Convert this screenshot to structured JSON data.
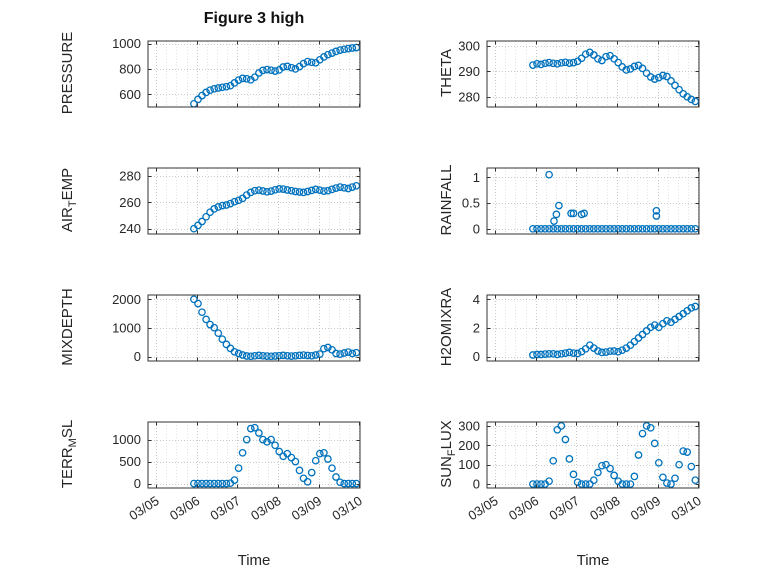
{
  "figure": {
    "title": "Figure 3 high",
    "xlabel": "Time"
  },
  "style": {
    "marker_color": "#0072BD",
    "axis_color": "#333333",
    "grid_color": "#c9c9c9",
    "minor_grid_color": "#e3e3e3",
    "background": "#ffffff"
  },
  "chart_data": [
    {
      "type": "scatter",
      "name": "pressure",
      "ylabel_parts": [
        {
          "text": "PRESSURE",
          "sub": false
        }
      ],
      "xlim": [
        4.8,
        10.02
      ],
      "ylim": [
        500,
        1020
      ],
      "xticks": [
        5,
        6,
        7,
        8,
        9,
        10
      ],
      "xtick_labels": [
        "03/05",
        "03/06",
        "03/07",
        "03/08",
        "03/09",
        "03/10"
      ],
      "ytick_vals": [
        600,
        800,
        1000
      ],
      "ytick_labels": [
        "600",
        "800",
        "1000"
      ],
      "x_minor_step": 0.25,
      "show_xtick_labels": false,
      "x": [
        5.93,
        6.03,
        6.13,
        6.23,
        6.33,
        6.43,
        6.53,
        6.63,
        6.73,
        6.83,
        6.93,
        7.03,
        7.13,
        7.23,
        7.33,
        7.43,
        7.53,
        7.63,
        7.73,
        7.83,
        7.93,
        8.03,
        8.13,
        8.23,
        8.33,
        8.43,
        8.53,
        8.63,
        8.73,
        8.83,
        8.93,
        9.03,
        9.13,
        9.23,
        9.33,
        9.43,
        9.53,
        9.63,
        9.73,
        9.83,
        9.93
      ],
      "y": [
        525,
        560,
        590,
        615,
        632,
        643,
        650,
        655,
        660,
        668,
        690,
        712,
        725,
        722,
        714,
        735,
        768,
        788,
        795,
        790,
        783,
        792,
        815,
        820,
        810,
        800,
        818,
        842,
        858,
        852,
        848,
        872,
        895,
        912,
        925,
        938,
        948,
        955,
        960,
        965,
        968
      ]
    },
    {
      "type": "scatter",
      "name": "theta",
      "ylabel_parts": [
        {
          "text": "THETA",
          "sub": false
        }
      ],
      "xlim": [
        4.8,
        10.02
      ],
      "ylim": [
        276,
        302
      ],
      "xticks": [
        5,
        6,
        7,
        8,
        9,
        10
      ],
      "xtick_labels": [
        "03/05",
        "03/06",
        "03/07",
        "03/08",
        "03/09",
        "03/10"
      ],
      "ytick_vals": [
        280,
        290,
        300
      ],
      "ytick_labels": [
        "280",
        "290",
        "300"
      ],
      "x_minor_step": 0.25,
      "show_xtick_labels": false,
      "x": [
        5.93,
        6.03,
        6.13,
        6.23,
        6.33,
        6.43,
        6.53,
        6.63,
        6.73,
        6.83,
        6.93,
        7.03,
        7.13,
        7.23,
        7.33,
        7.43,
        7.53,
        7.63,
        7.73,
        7.83,
        7.93,
        8.03,
        8.13,
        8.23,
        8.33,
        8.43,
        8.53,
        8.63,
        8.73,
        8.83,
        8.93,
        9.03,
        9.13,
        9.23,
        9.33,
        9.43,
        9.53,
        9.63,
        9.73,
        9.83,
        9.93
      ],
      "y": [
        292.5,
        293,
        292.8,
        293.2,
        293.5,
        293.2,
        293,
        293.4,
        293.6,
        293.3,
        293.5,
        294,
        295.2,
        296.8,
        297.5,
        296.5,
        295,
        294.3,
        295.8,
        296.2,
        295,
        293.5,
        291.8,
        290.6,
        291,
        292,
        292.4,
        291.2,
        289.3,
        287.8,
        287,
        287.6,
        288.4,
        288,
        286.3,
        284.5,
        282.8,
        281.2,
        280,
        279,
        278.2
      ]
    },
    {
      "type": "scatter",
      "name": "air_temp",
      "ylabel_parts": [
        {
          "text": "AIR",
          "sub": false
        },
        {
          "text": "T",
          "sub": true
        },
        {
          "text": "EMP",
          "sub": false
        }
      ],
      "xlim": [
        4.8,
        10.02
      ],
      "ylim": [
        236,
        286
      ],
      "xticks": [
        5,
        6,
        7,
        8,
        9,
        10
      ],
      "xtick_labels": [
        "03/05",
        "03/06",
        "03/07",
        "03/08",
        "03/09",
        "03/10"
      ],
      "ytick_vals": [
        240,
        260,
        280
      ],
      "ytick_labels": [
        "240",
        "260",
        "280"
      ],
      "x_minor_step": 0.25,
      "show_xtick_labels": false,
      "x": [
        5.93,
        6.03,
        6.13,
        6.23,
        6.33,
        6.43,
        6.53,
        6.63,
        6.73,
        6.83,
        6.93,
        7.03,
        7.13,
        7.23,
        7.33,
        7.43,
        7.53,
        7.63,
        7.73,
        7.83,
        7.93,
        8.03,
        8.13,
        8.23,
        8.33,
        8.43,
        8.53,
        8.63,
        8.73,
        8.83,
        8.93,
        9.03,
        9.13,
        9.23,
        9.33,
        9.43,
        9.53,
        9.63,
        9.73,
        9.83,
        9.93
      ],
      "y": [
        240,
        242.5,
        245.5,
        249,
        252.5,
        255,
        256.5,
        257.5,
        258,
        259,
        260.5,
        261.5,
        263,
        265.5,
        267.5,
        268.8,
        269.2,
        268.6,
        268,
        268.5,
        269.5,
        270.2,
        270,
        269.3,
        268.8,
        268.2,
        267.8,
        267.5,
        268.2,
        269,
        269.8,
        269.2,
        268.5,
        268.8,
        269.8,
        270.8,
        271.5,
        271,
        270.5,
        271.5,
        272.5
      ]
    },
    {
      "type": "scatter",
      "name": "rainfall",
      "ylabel_parts": [
        {
          "text": "RAINFALL",
          "sub": false
        }
      ],
      "xlim": [
        4.8,
        10.02
      ],
      "ylim": [
        -0.1,
        1.18
      ],
      "xticks": [
        5,
        6,
        7,
        8,
        9,
        10
      ],
      "xtick_labels": [
        "03/05",
        "03/06",
        "03/07",
        "03/08",
        "03/09",
        "03/10"
      ],
      "ytick_vals": [
        0,
        0.5,
        1
      ],
      "ytick_labels": [
        "0",
        "0.5",
        "1"
      ],
      "x_minor_step": 0.25,
      "show_xtick_labels": false,
      "x": [
        5.93,
        6.03,
        6.13,
        6.23,
        6.33,
        6.43,
        6.53,
        6.63,
        6.73,
        6.83,
        6.93,
        7.03,
        7.13,
        7.23,
        7.33,
        7.43,
        7.53,
        7.63,
        7.73,
        7.83,
        7.93,
        8.03,
        8.13,
        8.23,
        8.33,
        8.43,
        8.53,
        8.63,
        8.73,
        8.83,
        8.93,
        9.03,
        9.13,
        9.23,
        9.33,
        9.43,
        9.53,
        9.63,
        9.73,
        9.83,
        9.93,
        6.33,
        6.45,
        6.51,
        6.57,
        6.87,
        6.93,
        7.13,
        7.19,
        8.97,
        8.97
      ],
      "y": [
        0,
        0,
        0,
        0,
        0,
        0,
        0,
        0,
        0,
        0,
        0,
        0,
        0,
        0,
        0,
        0,
        0,
        0,
        0,
        0,
        0,
        0,
        0,
        0,
        0,
        0,
        0,
        0,
        0,
        0,
        0,
        0,
        0,
        0,
        0,
        0,
        0,
        0,
        0,
        0,
        0,
        1.05,
        0.15,
        0.28,
        0.45,
        0.3,
        0.3,
        0.28,
        0.3,
        0.25,
        0.35
      ]
    },
    {
      "type": "scatter",
      "name": "mixdepth",
      "ylabel_parts": [
        {
          "text": "MIXDEPTH",
          "sub": false
        }
      ],
      "xlim": [
        4.8,
        10.02
      ],
      "ylim": [
        -150,
        2150
      ],
      "xticks": [
        5,
        6,
        7,
        8,
        9,
        10
      ],
      "xtick_labels": [
        "03/05",
        "03/06",
        "03/07",
        "03/08",
        "03/09",
        "03/10"
      ],
      "ytick_vals": [
        0,
        1000,
        2000
      ],
      "ytick_labels": [
        "0",
        "1000",
        "2000"
      ],
      "x_minor_step": 0.25,
      "show_xtick_labels": false,
      "x": [
        5.93,
        6.03,
        6.13,
        6.23,
        6.33,
        6.43,
        6.53,
        6.63,
        6.73,
        6.83,
        6.93,
        7.03,
        7.13,
        7.23,
        7.33,
        7.43,
        7.53,
        7.63,
        7.73,
        7.83,
        7.93,
        8.03,
        8.13,
        8.23,
        8.33,
        8.43,
        8.53,
        8.63,
        8.73,
        8.83,
        8.93,
        9.03,
        9.13,
        9.23,
        9.33,
        9.43,
        9.53,
        9.63,
        9.73,
        9.83,
        9.93
      ],
      "y": [
        2000,
        1850,
        1550,
        1300,
        1120,
        1010,
        820,
        610,
        430,
        290,
        170,
        110,
        60,
        25,
        15,
        30,
        45,
        30,
        20,
        15,
        25,
        35,
        45,
        30,
        20,
        30,
        45,
        55,
        40,
        30,
        60,
        90,
        280,
        320,
        240,
        110,
        90,
        130,
        160,
        110,
        140
      ]
    },
    {
      "type": "scatter",
      "name": "h2omixra",
      "ylabel_parts": [
        {
          "text": "H2OMIXRA",
          "sub": false
        }
      ],
      "xlim": [
        4.8,
        10.02
      ],
      "ylim": [
        -0.3,
        4.3
      ],
      "xticks": [
        5,
        6,
        7,
        8,
        9,
        10
      ],
      "xtick_labels": [
        "03/05",
        "03/06",
        "03/07",
        "03/08",
        "03/09",
        "03/10"
      ],
      "ytick_vals": [
        0,
        2,
        4
      ],
      "ytick_labels": [
        "0",
        "2",
        "4"
      ],
      "x_minor_step": 0.25,
      "show_xtick_labels": false,
      "x": [
        5.93,
        6.03,
        6.13,
        6.23,
        6.33,
        6.43,
        6.53,
        6.63,
        6.73,
        6.83,
        6.93,
        7.03,
        7.13,
        7.23,
        7.33,
        7.43,
        7.53,
        7.63,
        7.73,
        7.83,
        7.93,
        8.03,
        8.13,
        8.23,
        8.33,
        8.43,
        8.53,
        8.63,
        8.73,
        8.83,
        8.93,
        9.03,
        9.13,
        9.23,
        9.33,
        9.43,
        9.53,
        9.63,
        9.73,
        9.83,
        9.93
      ],
      "y": [
        0.12,
        0.15,
        0.15,
        0.18,
        0.2,
        0.2,
        0.16,
        0.2,
        0.25,
        0.3,
        0.25,
        0.22,
        0.35,
        0.55,
        0.8,
        0.6,
        0.4,
        0.3,
        0.32,
        0.38,
        0.4,
        0.35,
        0.45,
        0.6,
        0.8,
        1.05,
        1.3,
        1.55,
        1.8,
        2.05,
        2.2,
        2.05,
        2.3,
        2.5,
        2.4,
        2.6,
        2.8,
        3,
        3.2,
        3.4,
        3.5
      ]
    },
    {
      "type": "scatter",
      "name": "terr_msl",
      "ylabel_parts": [
        {
          "text": "TERR",
          "sub": false
        },
        {
          "text": "M",
          "sub": true
        },
        {
          "text": "SL",
          "sub": false
        }
      ],
      "xlim": [
        4.8,
        10.02
      ],
      "ylim": [
        -100,
        1400
      ],
      "xticks": [
        5,
        6,
        7,
        8,
        9,
        10
      ],
      "xtick_labels": [
        "03/05",
        "03/06",
        "03/07",
        "03/08",
        "03/09",
        "03/10"
      ],
      "ytick_vals": [
        0,
        500,
        1000
      ],
      "ytick_labels": [
        "0",
        "500",
        "1000"
      ],
      "x_minor_step": 0.25,
      "show_xtick_labels": true,
      "x": [
        5.93,
        6.03,
        6.13,
        6.23,
        6.33,
        6.43,
        6.53,
        6.63,
        6.73,
        6.83,
        6.93,
        7.03,
        7.13,
        7.23,
        7.33,
        7.43,
        7.53,
        7.63,
        7.73,
        7.83,
        7.93,
        8.03,
        8.13,
        8.23,
        8.33,
        8.43,
        8.53,
        8.63,
        8.73,
        8.83,
        8.93,
        9.03,
        9.13,
        9.23,
        9.33,
        9.43,
        9.53,
        9.63,
        9.73,
        9.83,
        9.93
      ],
      "y": [
        0,
        0,
        0,
        0,
        0,
        0,
        0,
        0,
        0,
        10,
        80,
        350,
        700,
        1000,
        1250,
        1270,
        1150,
        1000,
        950,
        1000,
        870,
        730,
        620,
        680,
        590,
        500,
        300,
        120,
        40,
        250,
        520,
        680,
        700,
        560,
        350,
        150,
        30,
        0,
        0,
        0,
        0
      ]
    },
    {
      "type": "scatter",
      "name": "sun_flux",
      "ylabel_parts": [
        {
          "text": "SUN",
          "sub": false
        },
        {
          "text": "F",
          "sub": true
        },
        {
          "text": "LUX",
          "sub": false
        }
      ],
      "xlim": [
        4.8,
        10.02
      ],
      "ylim": [
        -20,
        320
      ],
      "xticks": [
        5,
        6,
        7,
        8,
        9,
        10
      ],
      "xtick_labels": [
        "03/05",
        "03/06",
        "03/07",
        "03/08",
        "03/09",
        "03/10"
      ],
      "ytick_vals": [
        0,
        100,
        200,
        300
      ],
      "ytick_labels": [
        "0",
        "100",
        "200",
        "300"
      ],
      "x_minor_step": 0.25,
      "show_xtick_labels": true,
      "x": [
        5.93,
        6.03,
        6.13,
        6.23,
        6.33,
        6.43,
        6.53,
        6.63,
        6.73,
        6.83,
        6.93,
        7.03,
        7.13,
        7.23,
        7.33,
        7.43,
        7.53,
        7.63,
        7.73,
        7.83,
        7.93,
        8.03,
        8.13,
        8.23,
        8.33,
        8.43,
        8.53,
        8.63,
        8.73,
        8.83,
        8.93,
        9.03,
        9.13,
        9.23,
        9.33,
        9.43,
        9.53,
        9.63,
        9.73,
        9.83,
        9.93
      ],
      "y": [
        0,
        0,
        0,
        0,
        15,
        120,
        280,
        300,
        230,
        130,
        50,
        10,
        0,
        0,
        0,
        20,
        60,
        95,
        100,
        80,
        45,
        15,
        0,
        0,
        0,
        40,
        150,
        260,
        300,
        290,
        210,
        110,
        35,
        5,
        0,
        30,
        100,
        170,
        165,
        90,
        20
      ]
    }
  ]
}
